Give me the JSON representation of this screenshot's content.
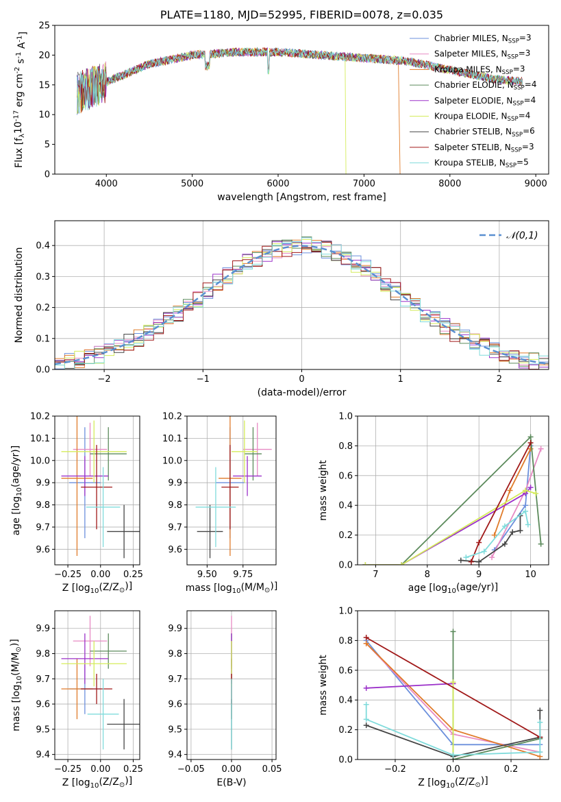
{
  "series": [
    {
      "name": "Chabrier MILES, N$_{SSP}$=3",
      "color": "#6b8fdc"
    },
    {
      "name": "Salpeter MILES, N$_{SSP}$=3",
      "color": "#e78ac3"
    },
    {
      "name": "Kroupa MILES, N$_{SSP}$=3",
      "color": "#e07b2a"
    },
    {
      "name": "Chabrier ELODIE, N$_{SSP}$=4",
      "color": "#5b8a5b"
    },
    {
      "name": "Salpeter ELODIE, N$_{SSP}$=4",
      "color": "#9b30c9"
    },
    {
      "name": "Kroupa ELODIE, N$_{SSP}$=4",
      "color": "#d4ec5a"
    },
    {
      "name": "Chabrier STELIB, N$_{SSP}$=6",
      "color": "#444444"
    },
    {
      "name": "Salpeter STELIB, N$_{SSP}$=3",
      "color": "#a01818"
    },
    {
      "name": "Kroupa STELIB, N$_{SSP}$=5",
      "color": "#7fdbdb"
    }
  ],
  "chart_data": [
    {
      "id": "spectrum",
      "type": "line",
      "title": "PLATE=1180, MJD=52995, FIBERID=0078, z=0.035",
      "xlabel": "wavelength [Angstrom, rest frame]",
      "ylabel": "Flux [f$_\\lambda$10$^{-17}$ erg cm$^{-2}$ s$^{-1}$ A$^{-1}$]",
      "xlim": [
        3400,
        9150
      ],
      "ylim": [
        0,
        25
      ],
      "xticks": [
        4000,
        5000,
        6000,
        7000,
        8000,
        9000
      ],
      "yticks": [
        0,
        5,
        10,
        15,
        20,
        25
      ],
      "data_envelope": {
        "x": [
          3650,
          4000,
          4500,
          5000,
          5500,
          6000,
          6500,
          7000,
          7500,
          8000,
          8500,
          8850
        ],
        "y": [
          13.5,
          15.5,
          18.5,
          20.0,
          20.5,
          20.5,
          20.0,
          19.5,
          19.0,
          17.5,
          16.0,
          15.5
        ]
      },
      "legend": "top-right",
      "grid": false
    },
    {
      "id": "residuals",
      "type": "bar",
      "xlabel": "(data-model)/error",
      "ylabel": "Normed distribution",
      "xlim": [
        -2.5,
        2.5
      ],
      "ylim": [
        0,
        0.48
      ],
      "xticks": [
        "−2",
        "−1",
        "0",
        "1",
        "2"
      ],
      "yticks": [
        "0.0",
        "0.1",
        "0.2",
        "0.3",
        "0.4"
      ],
      "reference_label": "$\\mathcal{N}(0,1)$",
      "legend": "top-right",
      "grid": true
    },
    {
      "id": "z-age",
      "type": "scatter",
      "xlabel": "Z [log$_{10}$(Z/Z$_\\odot$)]",
      "ylabel": "age  [log$_{10}$(age/yr)]",
      "xlim": [
        -0.35,
        0.3
      ],
      "ylim": [
        9.53,
        10.2
      ],
      "xticks": [
        "−0.25",
        "0.00",
        "0.25"
      ],
      "yticks": [
        "9.6",
        "9.7",
        "9.8",
        "9.9",
        "10.0",
        "10.1",
        "10.2"
      ],
      "points": [
        {
          "x": -0.12,
          "xerr": 0.12,
          "y": 9.9,
          "yerr": 0.25
        },
        {
          "x": -0.08,
          "xerr": 0.13,
          "y": 10.05,
          "yerr": 0.12
        },
        {
          "x": -0.18,
          "xerr": 0.12,
          "y": 9.92,
          "yerr": 0.35
        },
        {
          "x": 0.06,
          "xerr": 0.14,
          "y": 10.03,
          "yerr": 0.12
        },
        {
          "x": -0.12,
          "xerr": 0.18,
          "y": 9.93,
          "yerr": 0.09
        },
        {
          "x": -0.05,
          "xerr": 0.25,
          "y": 10.04,
          "yerr": 0.14
        },
        {
          "x": 0.18,
          "xerr": 0.13,
          "y": 9.68,
          "yerr": 0.12
        },
        {
          "x": -0.03,
          "xerr": 0.12,
          "y": 9.88,
          "yerr": 0.19
        },
        {
          "x": 0.02,
          "xerr": 0.13,
          "y": 9.79,
          "yerr": 0.18
        }
      ],
      "grid": true
    },
    {
      "id": "mass-age",
      "type": "scatter",
      "xlabel": "mass [log$_{10}$(M/M$_\\odot$)]",
      "ylabel": "",
      "xlim": [
        9.36,
        9.98
      ],
      "ylim": [
        9.53,
        10.2
      ],
      "xticks": [
        "9.50",
        "9.75"
      ],
      "yticks": [
        "9.6",
        "9.7",
        "9.8",
        "9.9",
        "10.0",
        "10.1",
        "10.2"
      ],
      "points": [
        {
          "x": 9.66,
          "xerr": 0.1,
          "y": 9.9,
          "yerr": 0.25
        },
        {
          "x": 9.85,
          "xerr": 0.1,
          "y": 10.05,
          "yerr": 0.12
        },
        {
          "x": 9.66,
          "xerr": 0.08,
          "y": 9.92,
          "yerr": 0.35
        },
        {
          "x": 9.82,
          "xerr": 0.06,
          "y": 10.03,
          "yerr": 0.12
        },
        {
          "x": 9.78,
          "xerr": 0.1,
          "y": 9.93,
          "yerr": 0.09
        },
        {
          "x": 9.76,
          "xerr": 0.09,
          "y": 10.04,
          "yerr": 0.14
        },
        {
          "x": 9.52,
          "xerr": 0.09,
          "y": 9.68,
          "yerr": 0.12
        },
        {
          "x": 9.66,
          "xerr": 0.06,
          "y": 9.88,
          "yerr": 0.19
        },
        {
          "x": 9.56,
          "xerr": 0.14,
          "y": 9.79,
          "yerr": 0.18
        }
      ],
      "grid": true
    },
    {
      "id": "age-weight",
      "type": "line",
      "xlabel": "age  [log$_{10}$(age/yr)]",
      "ylabel": "mass weight",
      "xlim": [
        6.65,
        10.35
      ],
      "ylim": [
        0,
        1
      ],
      "xticks": [
        "7",
        "8",
        "9",
        "10"
      ],
      "yticks": [
        "0.0",
        "0.2",
        "0.4",
        "0.6",
        "0.8",
        "1.0"
      ],
      "series": [
        {
          "x": [
            9.3,
            9.9,
            10.0
          ],
          "y": [
            0.1,
            0.4,
            0.8
          ]
        },
        {
          "x": [
            9.25,
            9.9,
            10.2
          ],
          "y": [
            0.05,
            0.5,
            0.78
          ]
        },
        {
          "x": [
            9.3,
            9.6,
            10.0
          ],
          "y": [
            0.2,
            0.5,
            0.78
          ]
        },
        {
          "x": [
            6.8,
            7.5,
            10.0,
            10.2
          ],
          "y": [
            0.0,
            0.0,
            0.86,
            0.14
          ]
        },
        {
          "x": [
            6.8,
            7.5,
            9.9,
            10.0
          ],
          "y": [
            0.0,
            0.0,
            0.48,
            0.52
          ]
        },
        {
          "x": [
            6.8,
            7.5,
            9.9,
            10.1
          ],
          "y": [
            0.0,
            0.0,
            0.5,
            0.48
          ]
        },
        {
          "x": [
            8.65,
            9.0,
            9.5,
            9.65,
            9.8,
            9.8
          ],
          "y": [
            0.03,
            0.02,
            0.14,
            0.22,
            0.23,
            0.33
          ]
        },
        {
          "x": [
            8.85,
            9.0,
            10.0
          ],
          "y": [
            0.02,
            0.15,
            0.82
          ]
        },
        {
          "x": [
            8.75,
            9.1,
            9.5,
            9.9,
            9.95
          ],
          "y": [
            0.05,
            0.09,
            0.26,
            0.36,
            0.27
          ]
        }
      ],
      "grid": true
    },
    {
      "id": "z-mass",
      "type": "scatter",
      "xlabel": "Z [log$_{10}$(Z/Z$_\\odot$)]",
      "ylabel": "mass [log$_{10}$(M/M$_\\odot$)]",
      "xlim": [
        -0.35,
        0.3
      ],
      "ylim": [
        9.38,
        9.97
      ],
      "xticks": [
        "−0.25",
        "0.00",
        "0.25"
      ],
      "yticks": [
        "9.4",
        "9.5",
        "9.6",
        "9.7",
        "9.8",
        "9.9"
      ],
      "points": [
        {
          "x": -0.12,
          "xerr": 0.12,
          "y": 9.66,
          "yerr": 0.1
        },
        {
          "x": -0.08,
          "xerr": 0.13,
          "y": 9.85,
          "yerr": 0.1
        },
        {
          "x": -0.18,
          "xerr": 0.12,
          "y": 9.66,
          "yerr": 0.12
        },
        {
          "x": 0.06,
          "xerr": 0.14,
          "y": 9.81,
          "yerr": 0.07
        },
        {
          "x": -0.12,
          "xerr": 0.18,
          "y": 9.78,
          "yerr": 0.1
        },
        {
          "x": -0.05,
          "xerr": 0.25,
          "y": 9.76,
          "yerr": 0.09
        },
        {
          "x": 0.18,
          "xerr": 0.13,
          "y": 9.52,
          "yerr": 0.1
        },
        {
          "x": -0.03,
          "xerr": 0.12,
          "y": 9.66,
          "yerr": 0.06
        },
        {
          "x": 0.02,
          "xerr": 0.12,
          "y": 9.56,
          "yerr": 0.14
        }
      ],
      "grid": true
    },
    {
      "id": "ebv-mass",
      "type": "scatter",
      "xlabel": "E(B-V)",
      "ylabel": "",
      "xlim": [
        -0.055,
        0.055
      ],
      "ylim": [
        9.38,
        9.97
      ],
      "xticks": [
        "−0.05",
        "0.00",
        "0.05"
      ],
      "yticks": [
        "9.4",
        "9.5",
        "9.6",
        "9.7",
        "9.8",
        "9.9"
      ],
      "points": [
        {
          "x": 0.0,
          "xerr": 0.0,
          "y": 9.66,
          "yerr": 0.12
        },
        {
          "x": 0.0,
          "xerr": 0.0,
          "y": 9.85,
          "yerr": 0.1
        },
        {
          "x": 0.0,
          "xerr": 0.0,
          "y": 9.66,
          "yerr": 0.12
        },
        {
          "x": 0.0,
          "xerr": 0.0,
          "y": 9.81,
          "yerr": 0.07
        },
        {
          "x": 0.0,
          "xerr": 0.0,
          "y": 9.78,
          "yerr": 0.1
        },
        {
          "x": 0.0,
          "xerr": 0.0,
          "y": 9.76,
          "yerr": 0.09
        },
        {
          "x": 0.0,
          "xerr": 0.0,
          "y": 9.52,
          "yerr": 0.1
        },
        {
          "x": 0.0,
          "xerr": 0.0,
          "y": 9.66,
          "yerr": 0.06
        },
        {
          "x": 0.0,
          "xerr": 0.0,
          "y": 9.56,
          "yerr": 0.14
        }
      ],
      "grid": true
    },
    {
      "id": "z-weight",
      "type": "line",
      "xlabel": "Z [log$_{10}$(Z/Z$_\\odot$)]",
      "ylabel": "mass weight",
      "xlim": [
        -0.33,
        0.33
      ],
      "ylim": [
        0,
        1
      ],
      "xticks": [
        "−0.2",
        "0.0",
        "0.2"
      ],
      "yticks": [
        "0.0",
        "0.2",
        "0.4",
        "0.6",
        "0.8",
        "1.0"
      ],
      "series": [
        {
          "x": [
            -0.3,
            0.0,
            0.3
          ],
          "y": [
            0.8,
            0.1,
            0.1
          ]
        },
        {
          "x": [
            -0.3,
            0.0,
            0.3
          ],
          "y": [
            0.78,
            0.17,
            0.05
          ]
        },
        {
          "x": [
            -0.3,
            0.0,
            0.3
          ],
          "y": [
            0.78,
            0.2,
            0.02
          ]
        },
        {
          "x": [
            0.0,
            0.0,
            0.3
          ],
          "y": [
            0.86,
            0.0,
            0.14
          ]
        },
        {
          "x": [
            -0.3,
            0.0
          ],
          "y": [
            0.48,
            0.51
          ]
        },
        {
          "x": [
            0.0,
            0.0
          ],
          "y": [
            0.52,
            0.02
          ]
        },
        {
          "x": [
            -0.3,
            0.0,
            0.3,
            0.3
          ],
          "y": [
            0.23,
            0.02,
            0.15,
            0.33
          ]
        },
        {
          "x": [
            -0.3,
            0.3
          ],
          "y": [
            0.82,
            0.15
          ]
        },
        {
          "x": [
            -0.3,
            -0.3,
            0.0,
            0.3,
            0.3
          ],
          "y": [
            0.37,
            0.27,
            0.03,
            0.05,
            0.25
          ]
        }
      ],
      "grid": true
    }
  ]
}
